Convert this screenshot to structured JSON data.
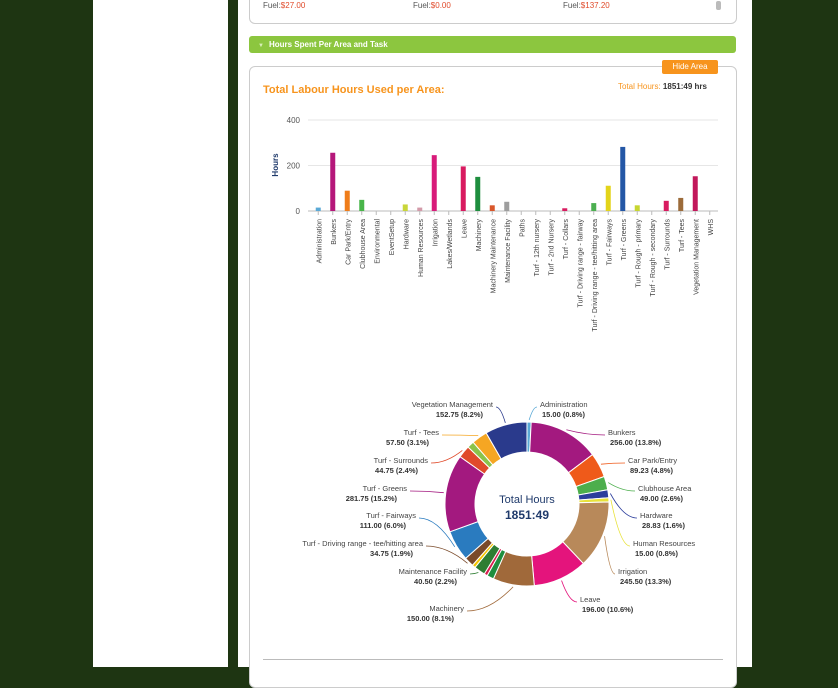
{
  "fuel_row": [
    {
      "label": "Fuel:",
      "value": "$27.00"
    },
    {
      "label": "Fuel:",
      "value": "$0.00"
    },
    {
      "label": "Fuel:",
      "value": "$137.20"
    }
  ],
  "section": {
    "title": "Hours Spent Per Area and Task"
  },
  "hide_button": "Hide Area",
  "chart_title": "Total Labour Hours Used per Area:",
  "total_hours_label": "Total Hours:",
  "total_hours_value": "1851:49 hrs",
  "colors": {
    "accent": "#f7941d",
    "section_green": "#8cc63f",
    "page_bg": "#1e3512"
  },
  "chart_data": [
    {
      "type": "bar",
      "ylabel": "Hours",
      "ylim": [
        0,
        400
      ],
      "yticks": [
        0,
        200,
        400
      ],
      "grid": true,
      "categories": [
        "Administration",
        "Bunkers",
        "Car Park/Entry",
        "Clubhouse Area",
        "Environmental",
        "EventSetup",
        "Hardware",
        "Human Resources",
        "Irrigation",
        "Lakes/Wetlands",
        "Leave",
        "Machinery",
        "Machinery Maintenance",
        "Maintenance Facility",
        "Paths",
        "Turf - 12th nursery",
        "Turf - 2nd Nursery",
        "Turf - Collars",
        "Turf - Driving range - fairway",
        "Turf - Driving range - tee/hitting area",
        "Turf - Fairways",
        "Turf - Greens",
        "Turf - Rough - primary",
        "Turf - Rough - secondary",
        "Turf - Surrounds",
        "Turf - Tees",
        "Vegetation Management",
        "WHS"
      ],
      "values": [
        15,
        256,
        89.23,
        49,
        0,
        0,
        28.83,
        15,
        245.5,
        0,
        196,
        150,
        25,
        40.5,
        0,
        0,
        0,
        12,
        0,
        34.75,
        111,
        281.75,
        25,
        0,
        44.75,
        57.5,
        152.75,
        0
      ],
      "bar_colors": [
        "#5aa9d6",
        "#b5177a",
        "#ef7d1a",
        "#49b54a",
        "#999",
        "#999",
        "#c9d63a",
        "#d39aa9",
        "#d81b7a",
        "#999",
        "#d81b60",
        "#1e8e3e",
        "#d9572b",
        "#9e9e9e",
        "#999",
        "#999",
        "#999",
        "#d81b60",
        "#999",
        "#4caf50",
        "#e3d41a",
        "#2457a6",
        "#c7d630",
        "#999",
        "#d81b60",
        "#9c6b3a",
        "#c2185b",
        "#999"
      ]
    },
    {
      "type": "pie",
      "center_title": "Total Hours",
      "center_value": "1851:49",
      "slices": [
        {
          "label": "Administration",
          "value_text": "15.00 (0.8%)",
          "value": 15,
          "color": "#5aa9d6"
        },
        {
          "label": "Bunkers",
          "value_text": "256.00 (13.8%)",
          "value": 256,
          "color": "#a3197f"
        },
        {
          "label": "Car Park/Entry",
          "value_text": "89.23 (4.8%)",
          "value": 89.23,
          "color": "#ef5a1a"
        },
        {
          "label": "Clubhouse Area",
          "value_text": "49.00 (2.6%)",
          "value": 49,
          "color": "#4cae4c"
        },
        {
          "label": "Hardware",
          "value_text": "28.83 (1.6%)",
          "value": 28.83,
          "color": "#2c3e9c"
        },
        {
          "label": "Human Resources",
          "value_text": "15.00 (0.8%)",
          "value": 15,
          "color": "#e8e23a"
        },
        {
          "label": "Irrigation",
          "value_text": "245.50 (13.3%)",
          "value": 245.5,
          "color": "#b8895a"
        },
        {
          "label": "Leave",
          "value_text": "196.00 (10.6%)",
          "value": 196,
          "color": "#e4147c"
        },
        {
          "label": "Machinery",
          "value_text": "150.00 (8.1%)",
          "value": 150,
          "color": "#a0693a"
        },
        {
          "label": "",
          "value_text": "",
          "value": 25,
          "color": "#1e8e3e"
        },
        {
          "label": "",
          "value_text": "",
          "value": 12,
          "color": "#d61c4e"
        },
        {
          "label": "Maintenance Facility",
          "value_text": "40.50 (2.2%)",
          "value": 40.5,
          "color": "#2e7d32"
        },
        {
          "label": "",
          "value_text": "",
          "value": 12,
          "color": "#f5c400"
        },
        {
          "label": "Turf - Driving range - tee/hitting area",
          "value_text": "34.75 (1.9%)",
          "value": 34.75,
          "color": "#7a4a2a"
        },
        {
          "label": "Turf - Fairways",
          "value_text": "111.00 (6.0%)",
          "value": 111,
          "color": "#2a7bbf"
        },
        {
          "label": "Turf - Greens",
          "value_text": "281.75 (15.2%)",
          "value": 281.75,
          "color": "#a3197f"
        },
        {
          "label": "Turf - Surrounds",
          "value_text": "44.75 (2.4%)",
          "value": 44.75,
          "color": "#e04a2a"
        },
        {
          "label": "",
          "value_text": "",
          "value": 25,
          "color": "#8bc34a"
        },
        {
          "label": "Turf - Tees",
          "value_text": "57.50 (3.1%)",
          "value": 57.5,
          "color": "#f5a623"
        },
        {
          "label": "Vegetation Management",
          "value_text": "152.75 (8.2%)",
          "value": 152.75,
          "color": "#2a3a8c"
        }
      ]
    }
  ]
}
